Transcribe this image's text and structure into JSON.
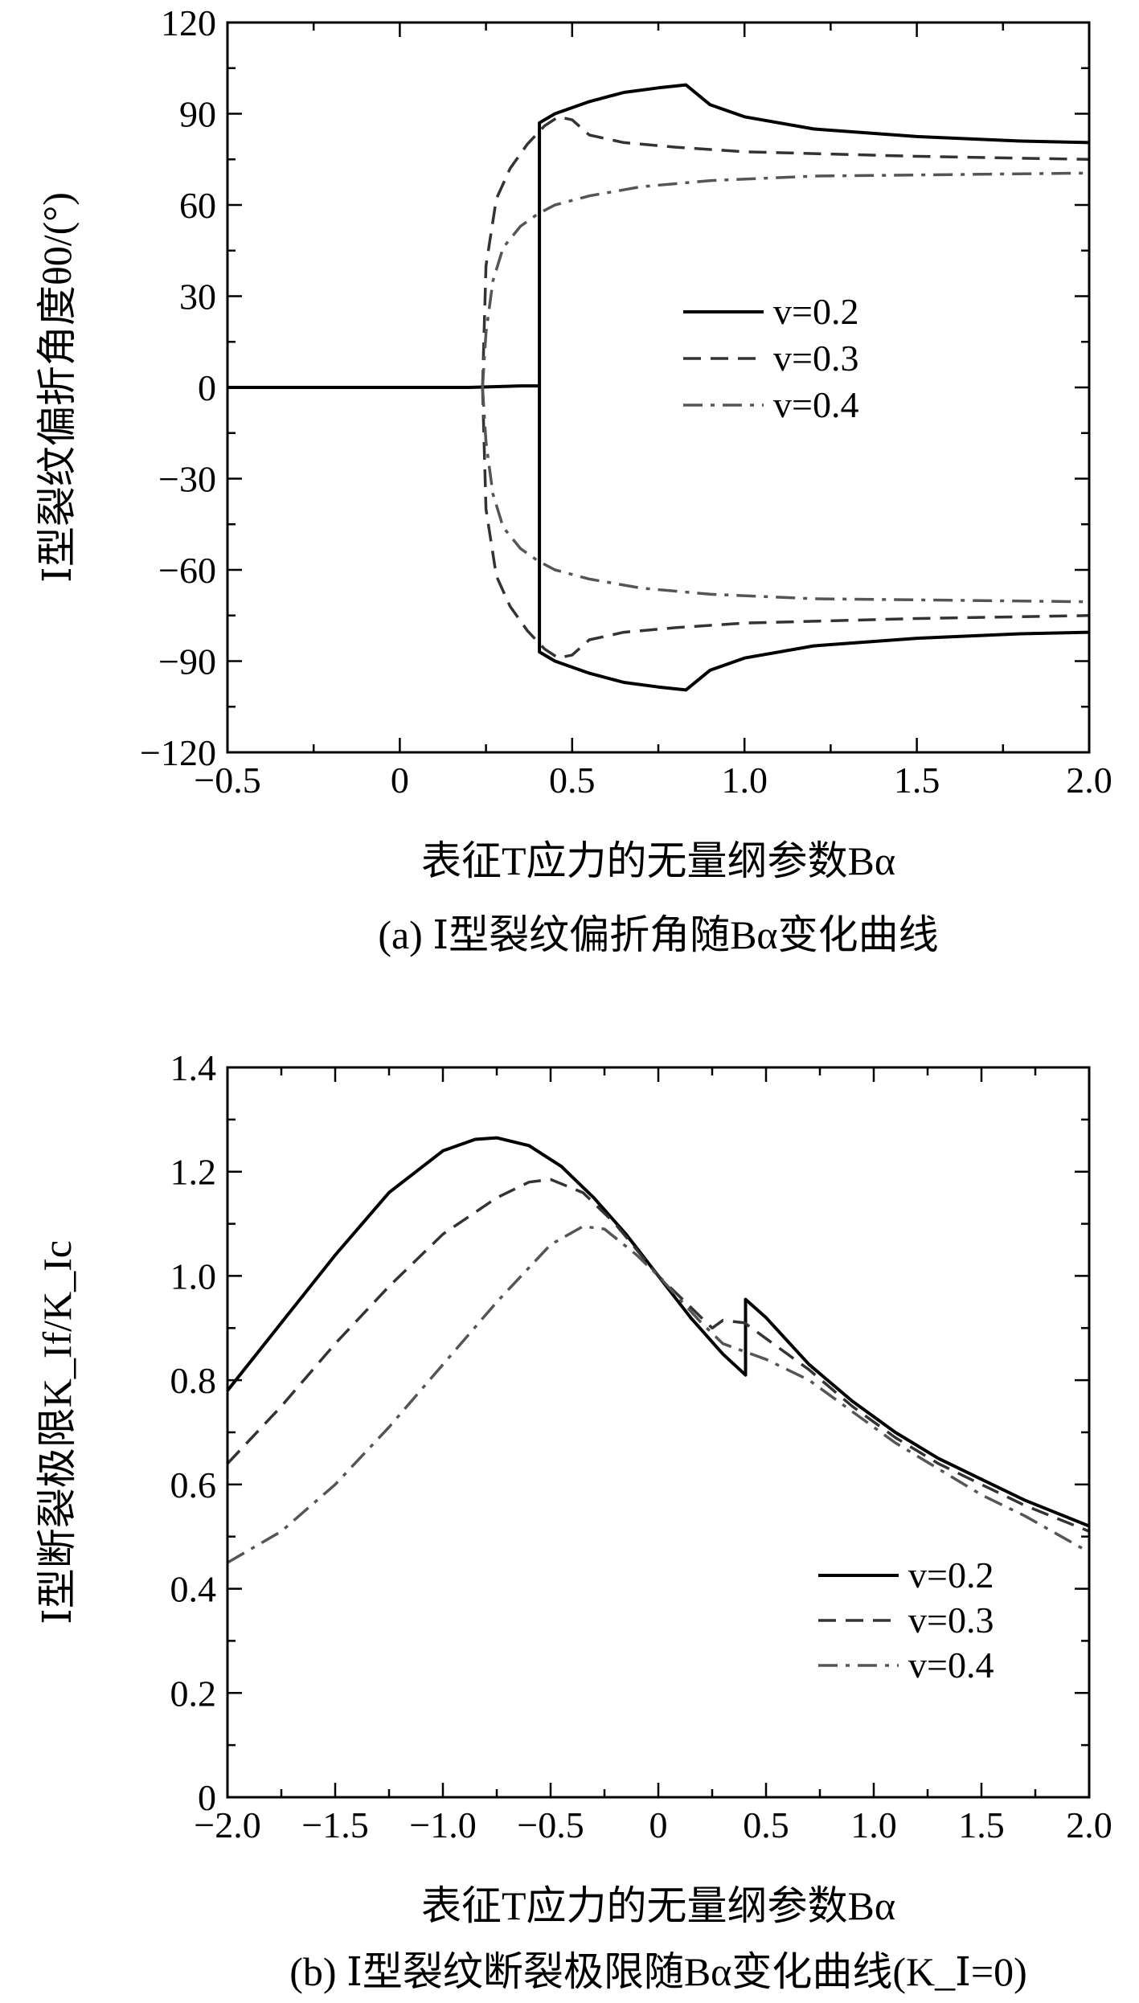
{
  "chart_data": [
    {
      "type": "line",
      "id": "a",
      "xlabel": "表征T应力的无量纲参数Bα",
      "ylabel": "Ⅰ型裂纹偏折角度θ0/(°)",
      "caption": "(a) Ⅰ型裂纹偏折角随Bα变化曲线",
      "xlim": [
        -0.5,
        2.0
      ],
      "ylim": [
        -120,
        120
      ],
      "xticks": [
        -0.5,
        0,
        0.5,
        1.0,
        1.5,
        2.0
      ],
      "xtick_labels": [
        "−0.5",
        "0",
        "0.5",
        "1.0",
        "1.5",
        "2.0"
      ],
      "yticks": [
        120,
        90,
        60,
        30,
        0,
        -30,
        -60,
        -90,
        -120
      ],
      "ytick_labels": [
        "120",
        "90",
        "60",
        "30",
        "0",
        "−30",
        "−60",
        "−90",
        "−120"
      ],
      "legend": {
        "position": "center-right",
        "entries": [
          "v=0.2",
          "v=0.3",
          "v=0.4"
        ]
      },
      "series": [
        {
          "name": "v=0.2",
          "style": "solid",
          "color": "#000000",
          "branches": [
            {
              "x": [
                -0.5,
                0.2,
                0.35,
                0.405
              ],
              "y": [
                0,
                0,
                0.5,
                0.5
              ]
            },
            {
              "x": [
                0.405,
                0.405,
                0.45,
                0.55,
                0.65,
                0.75,
                0.83,
                0.9,
                1.0,
                1.2,
                1.5,
                1.8,
                2.0
              ],
              "y": [
                0,
                87,
                90,
                94,
                97,
                98.5,
                99.5,
                93,
                89,
                85,
                82.5,
                81,
                80.5
              ]
            },
            {
              "x": [
                0.405,
                0.405,
                0.45,
                0.55,
                0.65,
                0.75,
                0.83,
                0.9,
                1.0,
                1.2,
                1.5,
                1.8,
                2.0
              ],
              "y": [
                0,
                -87,
                -90,
                -94,
                -97,
                -98.5,
                -99.5,
                -93,
                -89,
                -85,
                -82.5,
                -81,
                -80.5
              ]
            }
          ]
        },
        {
          "name": "v=0.3",
          "style": "dashed",
          "color": "#333333",
          "branches": [
            {
              "x": [
                0.24,
                0.25,
                0.28,
                0.32,
                0.37,
                0.42,
                0.46,
                0.5,
                0.55,
                0.65,
                0.8,
                1.0,
                1.5,
                2.0
              ],
              "y": [
                0,
                40,
                62,
                72,
                80,
                86,
                89,
                88,
                83,
                80.5,
                79,
                77.5,
                76,
                75
              ]
            },
            {
              "x": [
                0.24,
                0.25,
                0.28,
                0.32,
                0.37,
                0.42,
                0.46,
                0.5,
                0.55,
                0.65,
                0.8,
                1.0,
                1.5,
                2.0
              ],
              "y": [
                0,
                -40,
                -62,
                -72,
                -80,
                -86,
                -89,
                -88,
                -83,
                -80.5,
                -79,
                -77.5,
                -76,
                -75
              ]
            }
          ]
        },
        {
          "name": "v=0.4",
          "style": "dashdot",
          "color": "#555555",
          "branches": [
            {
              "x": [
                0.24,
                0.25,
                0.27,
                0.3,
                0.35,
                0.4,
                0.45,
                0.55,
                0.7,
                0.9,
                1.2,
                1.6,
                2.0
              ],
              "y": [
                0,
                18,
                35,
                46,
                53,
                57,
                60,
                63,
                66,
                68,
                69.5,
                70,
                70.5
              ]
            },
            {
              "x": [
                0.24,
                0.25,
                0.27,
                0.3,
                0.35,
                0.4,
                0.45,
                0.55,
                0.7,
                0.9,
                1.2,
                1.6,
                2.0
              ],
              "y": [
                0,
                -18,
                -35,
                -46,
                -53,
                -57,
                -60,
                -63,
                -66,
                -68,
                -69.5,
                -70,
                -70.5
              ]
            }
          ]
        }
      ]
    },
    {
      "type": "line",
      "id": "b",
      "xlabel": "表征T应力的无量纲参数Bα",
      "ylabel": "Ⅰ型断裂极限K_If/K_Ic",
      "caption": "(b) Ⅰ型裂纹断裂极限随Bα变化曲线(K_Ⅰ=0)",
      "xlim": [
        -2.0,
        2.0
      ],
      "ylim": [
        0,
        1.4
      ],
      "xticks": [
        -2.0,
        -1.5,
        -1.0,
        -0.5,
        0,
        0.5,
        1.0,
        1.5,
        2.0
      ],
      "xtick_labels": [
        "−2.0",
        "−1.5",
        "−1.0",
        "−0.5",
        "0",
        "0.5",
        "1.0",
        "1.5",
        "2.0"
      ],
      "yticks": [
        0,
        0.2,
        0.4,
        0.6,
        0.8,
        1.0,
        1.2,
        1.4
      ],
      "ytick_labels": [
        "0",
        "0.2",
        "0.4",
        "0.6",
        "0.8",
        "1.0",
        "1.2",
        "1.4"
      ],
      "legend": {
        "position": "lower-right",
        "entries": [
          "v=0.2",
          "v=0.3",
          "v=0.4"
        ]
      },
      "series": [
        {
          "name": "v=0.2",
          "style": "solid",
          "color": "#000000",
          "branches": [
            {
              "x": [
                -2.0,
                -1.75,
                -1.5,
                -1.25,
                -1.0,
                -0.85,
                -0.75,
                -0.6,
                -0.45,
                -0.3,
                -0.15,
                0.0,
                0.15,
                0.3,
                0.405,
                0.405,
                0.5,
                0.7,
                0.9,
                1.1,
                1.3,
                1.5,
                1.7,
                2.0
              ],
              "y": [
                0.78,
                0.91,
                1.04,
                1.16,
                1.24,
                1.262,
                1.265,
                1.25,
                1.21,
                1.15,
                1.08,
                1.0,
                0.92,
                0.85,
                0.81,
                0.955,
                0.92,
                0.83,
                0.76,
                0.7,
                0.65,
                0.61,
                0.57,
                0.52
              ]
            }
          ]
        },
        {
          "name": "v=0.3",
          "style": "dashed",
          "color": "#333333",
          "branches": [
            {
              "x": [
                -2.0,
                -1.75,
                -1.5,
                -1.25,
                -1.0,
                -0.75,
                -0.6,
                -0.5,
                -0.35,
                -0.2,
                0.0,
                0.15,
                0.25,
                0.3,
                0.4,
                0.5,
                0.7,
                0.9,
                1.1,
                1.3,
                1.5,
                1.7,
                2.0
              ],
              "y": [
                0.64,
                0.75,
                0.87,
                0.98,
                1.08,
                1.15,
                1.18,
                1.185,
                1.16,
                1.1,
                1.0,
                0.94,
                0.9,
                0.915,
                0.91,
                0.88,
                0.82,
                0.75,
                0.69,
                0.64,
                0.6,
                0.56,
                0.51
              ]
            }
          ]
        },
        {
          "name": "v=0.4",
          "style": "dashdot",
          "color": "#555555",
          "branches": [
            {
              "x": [
                -2.0,
                -1.75,
                -1.5,
                -1.25,
                -1.0,
                -0.75,
                -0.5,
                -0.35,
                -0.25,
                -0.1,
                0.0,
                0.2,
                0.3,
                0.5,
                0.7,
                0.9,
                1.1,
                1.3,
                1.5,
                1.7,
                2.0
              ],
              "y": [
                0.45,
                0.51,
                0.6,
                0.71,
                0.83,
                0.95,
                1.06,
                1.095,
                1.09,
                1.04,
                1.0,
                0.91,
                0.87,
                0.84,
                0.8,
                0.74,
                0.68,
                0.63,
                0.58,
                0.54,
                0.47
              ]
            }
          ]
        }
      ]
    }
  ]
}
